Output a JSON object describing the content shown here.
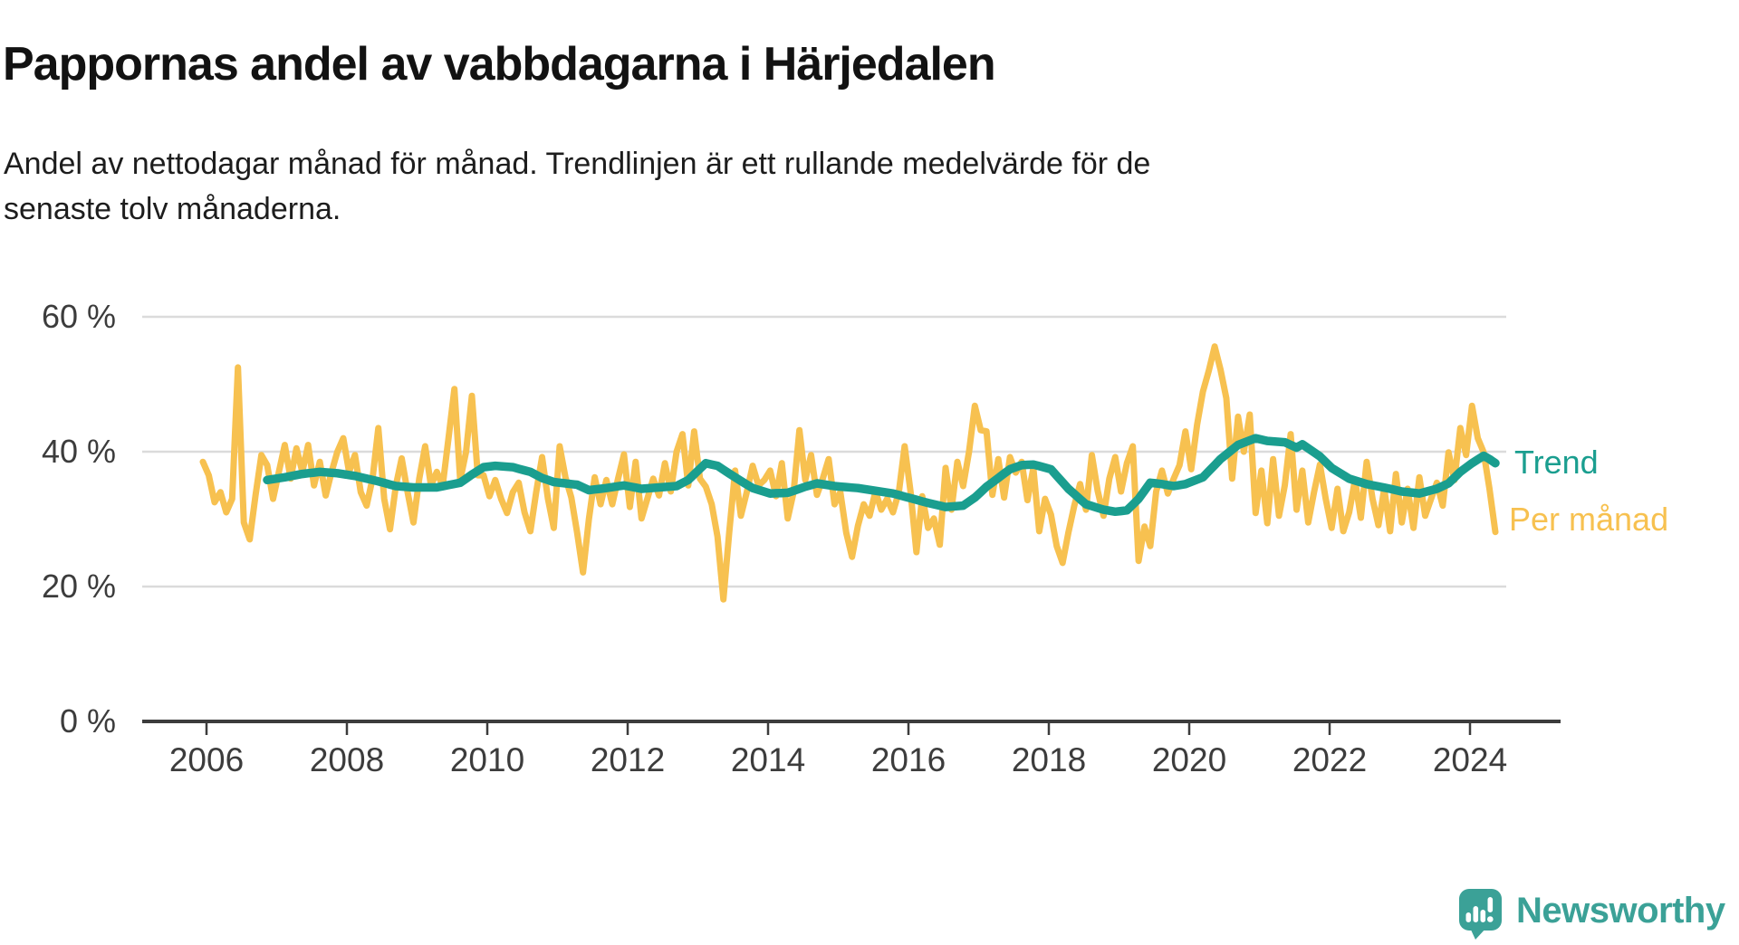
{
  "title": "Pappornas andel av vabbdagarna i Härjedalen",
  "subtitle_lines": [
    "Andel av nettodagar månad för månad. Trendlinjen är ett rullande medelvärde för de",
    "senaste tolv månaderna."
  ],
  "legend": {
    "trend_label": "Trend",
    "monthly_label": "Per månad"
  },
  "branding": {
    "name": "Newsworthy",
    "icon": "speech-bubble-bar-chart",
    "color": "#3BA197"
  },
  "colors": {
    "monthly": "#F7C150",
    "trend": "#1A9E8F",
    "grid": "#DBDBDB",
    "axis": "#3C3C3C",
    "tick_text": "#3c3c3c"
  },
  "y_axis": [
    {
      "label": "60 %",
      "value": 60
    },
    {
      "label": "40 %",
      "value": 40
    },
    {
      "label": "20 %",
      "value": 20
    },
    {
      "label": "0 %",
      "value": 0
    }
  ],
  "x_axis": [
    {
      "label": "2006",
      "year": 2006
    },
    {
      "label": "2008",
      "year": 2008
    },
    {
      "label": "2010",
      "year": 2010
    },
    {
      "label": "2012",
      "year": 2012
    },
    {
      "label": "2014",
      "year": 2014
    },
    {
      "label": "2016",
      "year": 2016
    },
    {
      "label": "2018",
      "year": 2018
    },
    {
      "label": "2020",
      "year": 2020
    },
    {
      "label": "2022",
      "year": 2022
    },
    {
      "label": "2024",
      "year": 2024
    }
  ],
  "chart_data": {
    "type": "line",
    "title": "Pappornas andel av vabbdagarna i Härjedalen",
    "xlabel": "",
    "ylabel": "",
    "x_unit": "month",
    "start": {
      "year": 2006,
      "month": 1
    },
    "end": {
      "year": 2024,
      "month": 6
    },
    "ylim": [
      0,
      63
    ],
    "y_tick_values": [
      0,
      20,
      40,
      60
    ],
    "x_tick_years": [
      2006,
      2008,
      2010,
      2012,
      2014,
      2016,
      2018,
      2020,
      2022,
      2024
    ],
    "grid": "horizontal-only",
    "legend_position": "right-end-of-lines",
    "series": [
      {
        "name": "Per månad",
        "color": "#F7C150",
        "unit": "%",
        "values": [
          38.5,
          36.5,
          32.5,
          34,
          31,
          33,
          52.5,
          29.5,
          27,
          33.5,
          39.5,
          38,
          33,
          37,
          41,
          36,
          40.5,
          37,
          41,
          35,
          38.5,
          33.5,
          37,
          40,
          42,
          37,
          39.5,
          34,
          32,
          36,
          43.5,
          33,
          28.5,
          35,
          39,
          34,
          29.5,
          36,
          40.8,
          35,
          37,
          34.9,
          42,
          49.3,
          35.8,
          40,
          48.3,
          36.5,
          36.5,
          33.4,
          35.8,
          33,
          30.9,
          34,
          35.4,
          31,
          28.2,
          34,
          39.2,
          33,
          28.7,
          40.8,
          36.2,
          33.2,
          28,
          22.1,
          30,
          36.2,
          32.2,
          35.8,
          32.2,
          36,
          39.6,
          31.8,
          38.5,
          30.1,
          33,
          36,
          33.5,
          38.3,
          34.1,
          40,
          42.6,
          35,
          43,
          36,
          34.8,
          32.2,
          27.4,
          18.1,
          28,
          37.2,
          30.5,
          34,
          37.9,
          35,
          35.8,
          37.2,
          33.4,
          38.3,
          30.1,
          34,
          43.2,
          35.8,
          39.5,
          33.6,
          36,
          38.9,
          32.2,
          34,
          28,
          24.4,
          29,
          32.2,
          30.5,
          34.1,
          31.4,
          33,
          31,
          34,
          40.8,
          34.1,
          25.1,
          33.4,
          28.7,
          30.1,
          26.2,
          37.6,
          31.4,
          38.5,
          34.9,
          40,
          46.8,
          43.2,
          43,
          33.6,
          38.9,
          33.2,
          39.2,
          36.9,
          38.5,
          32.8,
          37.6,
          28.2,
          33,
          30.7,
          26,
          23.5,
          28,
          32,
          35.2,
          31.4,
          39.5,
          34.2,
          30.5,
          36,
          39.2,
          34.1,
          38.3,
          40.8,
          23.8,
          28.9,
          26,
          34.1,
          37.2,
          33.8,
          36,
          38,
          43,
          37.4,
          44,
          48.9,
          52,
          55.6,
          52.2,
          47.9,
          36,
          45.2,
          40,
          45.5,
          30.9,
          37.2,
          29.4,
          38.9,
          30.5,
          35,
          42.6,
          31.4,
          37.2,
          29.5,
          34,
          38.1,
          33,
          28.7,
          34.5,
          28.2,
          31,
          35.8,
          30.2,
          38.5,
          33,
          29.1,
          34.5,
          28.2,
          36.7,
          29.5,
          34.5,
          28.7,
          36.2,
          30.5,
          33,
          35.4,
          32,
          39.9,
          35.8,
          43.5,
          39.5,
          46.8,
          42,
          39.9,
          34.5,
          28.1
        ]
      },
      {
        "name": "Trend",
        "color": "#1A9E8F",
        "unit": "%",
        "derivation": "rullande medelvärde för de senaste tolv månaderna",
        "anchor_points": [
          [
            11,
            35.8
          ],
          [
            14,
            36.2
          ],
          [
            17,
            36.7
          ],
          [
            20,
            37.0
          ],
          [
            23,
            36.8
          ],
          [
            26,
            36.4
          ],
          [
            30,
            35.6
          ],
          [
            33,
            34.9
          ],
          [
            36,
            34.7
          ],
          [
            40,
            34.7
          ],
          [
            44,
            35.4
          ],
          [
            46,
            36.6
          ],
          [
            48,
            37.7
          ],
          [
            50,
            37.9
          ],
          [
            53,
            37.7
          ],
          [
            56,
            37.0
          ],
          [
            58,
            36.1
          ],
          [
            60,
            35.5
          ],
          [
            64,
            35.1
          ],
          [
            66,
            34.3
          ],
          [
            69,
            34.6
          ],
          [
            72,
            35.0
          ],
          [
            75,
            34.5
          ],
          [
            78,
            34.7
          ],
          [
            81,
            34.9
          ],
          [
            83,
            35.8
          ],
          [
            86,
            38.3
          ],
          [
            88,
            37.9
          ],
          [
            91,
            36.2
          ],
          [
            94,
            34.6
          ],
          [
            97,
            33.8
          ],
          [
            100,
            33.9
          ],
          [
            103,
            34.8
          ],
          [
            105,
            35.3
          ],
          [
            108,
            34.9
          ],
          [
            112,
            34.6
          ],
          [
            115,
            34.2
          ],
          [
            118,
            33.8
          ],
          [
            121,
            33.1
          ],
          [
            124,
            32.4
          ],
          [
            127,
            31.8
          ],
          [
            130,
            32.0
          ],
          [
            132,
            33.2
          ],
          [
            134,
            34.8
          ],
          [
            136,
            36.1
          ],
          [
            138,
            37.4
          ],
          [
            140,
            38.0
          ],
          [
            142,
            38.1
          ],
          [
            145,
            37.4
          ],
          [
            148,
            34.5
          ],
          [
            151,
            32.2
          ],
          [
            154,
            31.4
          ],
          [
            156,
            31.1
          ],
          [
            158,
            31.3
          ],
          [
            160,
            33.0
          ],
          [
            162,
            35.4
          ],
          [
            164,
            35.2
          ],
          [
            166,
            34.9
          ],
          [
            168,
            35.2
          ],
          [
            171,
            36.2
          ],
          [
            174,
            38.9
          ],
          [
            177,
            41.0
          ],
          [
            180,
            42.0
          ],
          [
            182,
            41.6
          ],
          [
            185,
            41.4
          ],
          [
            187,
            40.6
          ],
          [
            188,
            41.1
          ],
          [
            191,
            39.3
          ],
          [
            193,
            37.6
          ],
          [
            196,
            36.0
          ],
          [
            199,
            35.2
          ],
          [
            203,
            34.5
          ],
          [
            205,
            34.1
          ],
          [
            208,
            33.8
          ],
          [
            211,
            34.5
          ],
          [
            213,
            35.3
          ],
          [
            215,
            37.0
          ],
          [
            217,
            38.3
          ],
          [
            219,
            39.4
          ],
          [
            220,
            38.9
          ],
          [
            221,
            38.3
          ]
        ]
      }
    ]
  }
}
